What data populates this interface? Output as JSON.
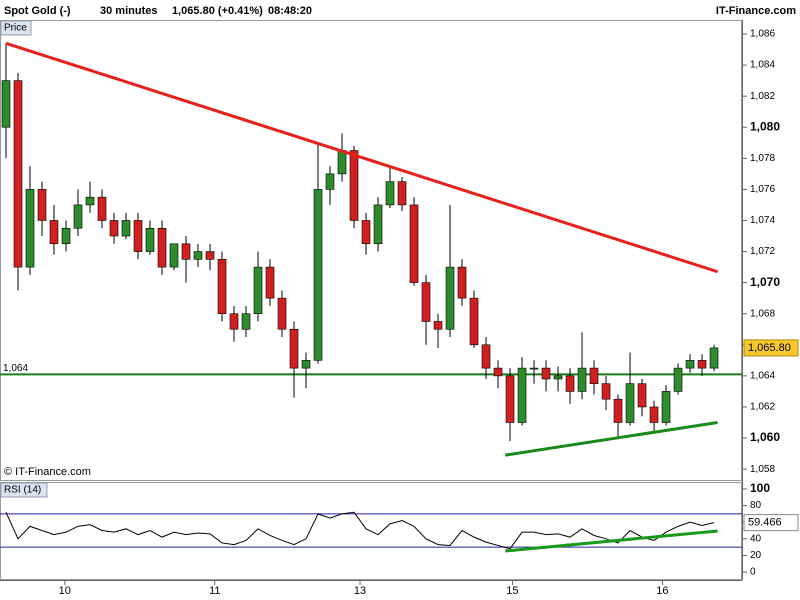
{
  "chart_data": [
    {
      "type": "candlestick",
      "title": "Spot Gold (-)",
      "interval": "30 minutes",
      "change": "1,065.80 (+0.41%)",
      "time": "08:48:20",
      "source": "IT-Finance.com",
      "panel_label": "Price",
      "watermark": "© IT-Finance.com",
      "xlim": [
        -0.5,
        61.33
      ],
      "xticks": [
        {
          "value": 4.9,
          "label": "10"
        },
        {
          "value": 17.4,
          "label": "11"
        },
        {
          "value": 29.5,
          "label": "13"
        },
        {
          "value": 42.2,
          "label": "15"
        },
        {
          "value": 54.7,
          "label": "16"
        }
      ],
      "ylim": [
        1057.3,
        1086.9
      ],
      "yticks": [
        {
          "value": 1058,
          "label": "1,058"
        },
        {
          "value": 1060,
          "label": "1,060"
        },
        {
          "value": 1062,
          "label": "1,062"
        },
        {
          "value": 1064,
          "label": "1,064"
        },
        {
          "value": 1066,
          "label": "1,066"
        },
        {
          "value": 1068,
          "label": "1,068"
        },
        {
          "value": 1070,
          "label": "1,070"
        },
        {
          "value": 1072,
          "label": "1,072"
        },
        {
          "value": 1074,
          "label": "1,074"
        },
        {
          "value": 1076,
          "label": "1,076"
        },
        {
          "value": 1078,
          "label": "1,078"
        },
        {
          "value": 1080,
          "label": "1,080"
        },
        {
          "value": 1082,
          "label": "1,082"
        },
        {
          "value": 1084,
          "label": "1,084"
        },
        {
          "value": 1086,
          "label": "1,086"
        }
      ],
      "open": [
        1080,
        1083,
        1071,
        1076,
        1074,
        1072.5,
        1073.5,
        1075,
        1075.5,
        1074,
        1073,
        1074,
        1072,
        1073.5,
        1071,
        1072.5,
        1071.5,
        1072,
        1071.5,
        1068,
        1067,
        1068,
        1071,
        1069,
        1067,
        1064.5,
        1065,
        1076,
        1077,
        1078.5,
        1074,
        1072.5,
        1075,
        1076.5,
        1075,
        1070,
        1067.5,
        1067,
        1071,
        1069,
        1066,
        1064.5,
        1064,
        1061,
        1064.5,
        1064.5,
        1063.8,
        1064,
        1063,
        1064.5,
        1063.5,
        1062.5,
        1061,
        1063.5,
        1062,
        1061,
        1063,
        1064.5,
        1065,
        1064.5
      ],
      "high": [
        1085.4,
        1083.5,
        1077.5,
        1076.5,
        1075,
        1074,
        1076,
        1076.5,
        1076,
        1074.5,
        1074.5,
        1074.5,
        1074,
        1074,
        1072.5,
        1073,
        1072.5,
        1072.5,
        1072,
        1068.5,
        1068.5,
        1072,
        1071.5,
        1069.5,
        1067.5,
        1065.5,
        1079,
        1077.5,
        1079.6,
        1078.8,
        1074.5,
        1075.5,
        1077.5,
        1076.8,
        1075.5,
        1070.5,
        1068,
        1075,
        1071.5,
        1069.5,
        1066.5,
        1065,
        1064.5,
        1065.2,
        1065,
        1065,
        1064.6,
        1064.5,
        1066.8,
        1065,
        1064,
        1062.8,
        1065.5,
        1063.8,
        1062.4,
        1063.4,
        1064.8,
        1065.4,
        1065.4,
        1066
      ],
      "low": [
        1078,
        1069.5,
        1070.5,
        1073,
        1071.8,
        1072,
        1073,
        1074.5,
        1073.5,
        1072.5,
        1072.8,
        1071.5,
        1071.8,
        1070.5,
        1070.8,
        1070,
        1071,
        1070.8,
        1067.5,
        1066.2,
        1066.5,
        1067.5,
        1068.5,
        1066.5,
        1062.6,
        1063.2,
        1064.8,
        1075,
        1076.5,
        1073.5,
        1071.8,
        1072,
        1074.8,
        1074.6,
        1069.8,
        1066,
        1065.8,
        1066.5,
        1068.5,
        1065.8,
        1063.8,
        1063.2,
        1059.8,
        1060.8,
        1063.5,
        1063,
        1063,
        1062.2,
        1062.5,
        1062.8,
        1061.8,
        1060,
        1060.8,
        1061.4,
        1060.3,
        1060.8,
        1062.8,
        1064.2,
        1064,
        1064.3
      ],
      "close": [
        1083,
        1071,
        1076,
        1074,
        1072.5,
        1073.5,
        1075,
        1075.5,
        1074,
        1073,
        1074,
        1072,
        1073.5,
        1071,
        1072.5,
        1071.5,
        1072,
        1071.5,
        1068,
        1067,
        1068,
        1071,
        1069,
        1067,
        1064.5,
        1065,
        1076,
        1077,
        1078.5,
        1074,
        1072.5,
        1075,
        1076.5,
        1075,
        1070,
        1067.5,
        1067,
        1071,
        1069,
        1066,
        1064.5,
        1064,
        1061,
        1064.5,
        1064.5,
        1063.8,
        1064,
        1063,
        1064.5,
        1063.5,
        1062.5,
        1061,
        1063.5,
        1062,
        1061,
        1063,
        1064.5,
        1065,
        1064.5,
        1065.8
      ],
      "last_label": "1,065.80",
      "up_color": "#2e8b2e",
      "down_color": "#d02020",
      "hline": {
        "value": 1064.1,
        "label": "1,064",
        "color": "#1a7a1a"
      },
      "lines": [
        {
          "x": [
            0,
            59.3
          ],
          "y": [
            1085.4,
            1070.7
          ],
          "color": "#e8201c"
        },
        {
          "x": [
            41.6,
            59.3
          ],
          "y": [
            1058.9,
            1061.0
          ],
          "color": "#1a8a1a"
        }
      ]
    },
    {
      "type": "line",
      "title": "RSI (14)",
      "color": "#000000",
      "values": [
        72,
        40,
        55,
        50,
        45,
        48,
        55,
        57,
        50,
        48,
        52,
        45,
        50,
        42,
        48,
        45,
        47,
        46,
        35,
        33,
        38,
        52,
        44,
        38,
        33,
        40,
        70,
        65,
        70,
        72,
        52,
        45,
        58,
        62,
        55,
        40,
        33,
        32,
        50,
        42,
        36,
        32,
        28,
        48,
        48,
        45,
        46,
        42,
        52,
        44,
        40,
        35,
        50,
        42,
        38,
        48,
        55,
        60,
        56,
        59.466
      ],
      "value_label": "59.466",
      "ylim": [
        -9.6,
        108.4
      ],
      "yticks": [
        0,
        20,
        40,
        60,
        80,
        100
      ],
      "bands": [
        30,
        70
      ],
      "band_color": "#2020a0",
      "lines": [
        {
          "x": [
            41.6,
            59.3
          ],
          "y": [
            25.3,
            49.4
          ],
          "color": "#1a9a1a"
        }
      ]
    }
  ]
}
